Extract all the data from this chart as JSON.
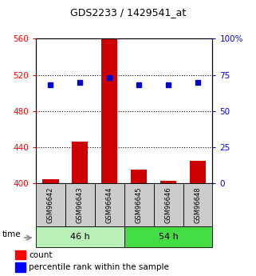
{
  "title": "GDS2233 / 1429541_at",
  "samples": [
    "GSM96642",
    "GSM96643",
    "GSM96644",
    "GSM96645",
    "GSM96646",
    "GSM96648"
  ],
  "count_values": [
    405,
    446,
    560,
    415,
    403,
    425
  ],
  "percentile_values": [
    68,
    70,
    73,
    68,
    68,
    70
  ],
  "groups": [
    {
      "label": "46 h",
      "indices": [
        0,
        1,
        2
      ],
      "color": "#aaf0aa"
    },
    {
      "label": "54 h",
      "indices": [
        3,
        4,
        5
      ],
      "color": "#33dd33"
    }
  ],
  "left_ylim": [
    400,
    560
  ],
  "right_ylim": [
    0,
    100
  ],
  "left_yticks": [
    400,
    440,
    480,
    520,
    560
  ],
  "right_yticks": [
    0,
    25,
    50,
    75,
    100
  ],
  "right_yticklabels": [
    "0",
    "25",
    "50",
    "75",
    "100%"
  ],
  "bar_color": "#CC0000",
  "dot_color": "#0000CC",
  "bar_width": 0.55,
  "bar_bottom": 400,
  "bg_color": "#ffffff",
  "sample_box_color": "#cccccc",
  "time_label": "time",
  "legend_count_label": "count",
  "legend_percentile_label": "percentile rank within the sample"
}
